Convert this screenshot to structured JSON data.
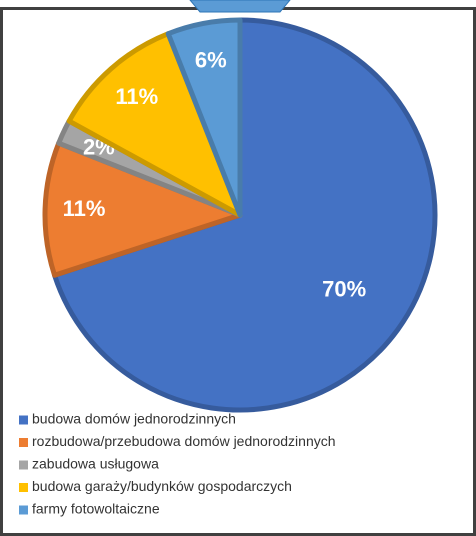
{
  "chart_data": {
    "type": "pie",
    "categories": [
      "budowa domów jednorodzinnych",
      "rozbudowa/przebudowa domów jednorodzinnych",
      "zabudowa usługowa",
      "budowa garaży/budynków gospodarczych",
      "farmy fotowoltaiczne"
    ],
    "values": [
      70,
      11,
      2,
      11,
      6
    ],
    "value_labels": [
      "70%",
      "11%",
      "2%",
      "11%",
      "6%"
    ],
    "colors": [
      "#4472c4",
      "#ed7d31",
      "#a5a5a5",
      "#ffc000",
      "#5b9bd5"
    ]
  }
}
